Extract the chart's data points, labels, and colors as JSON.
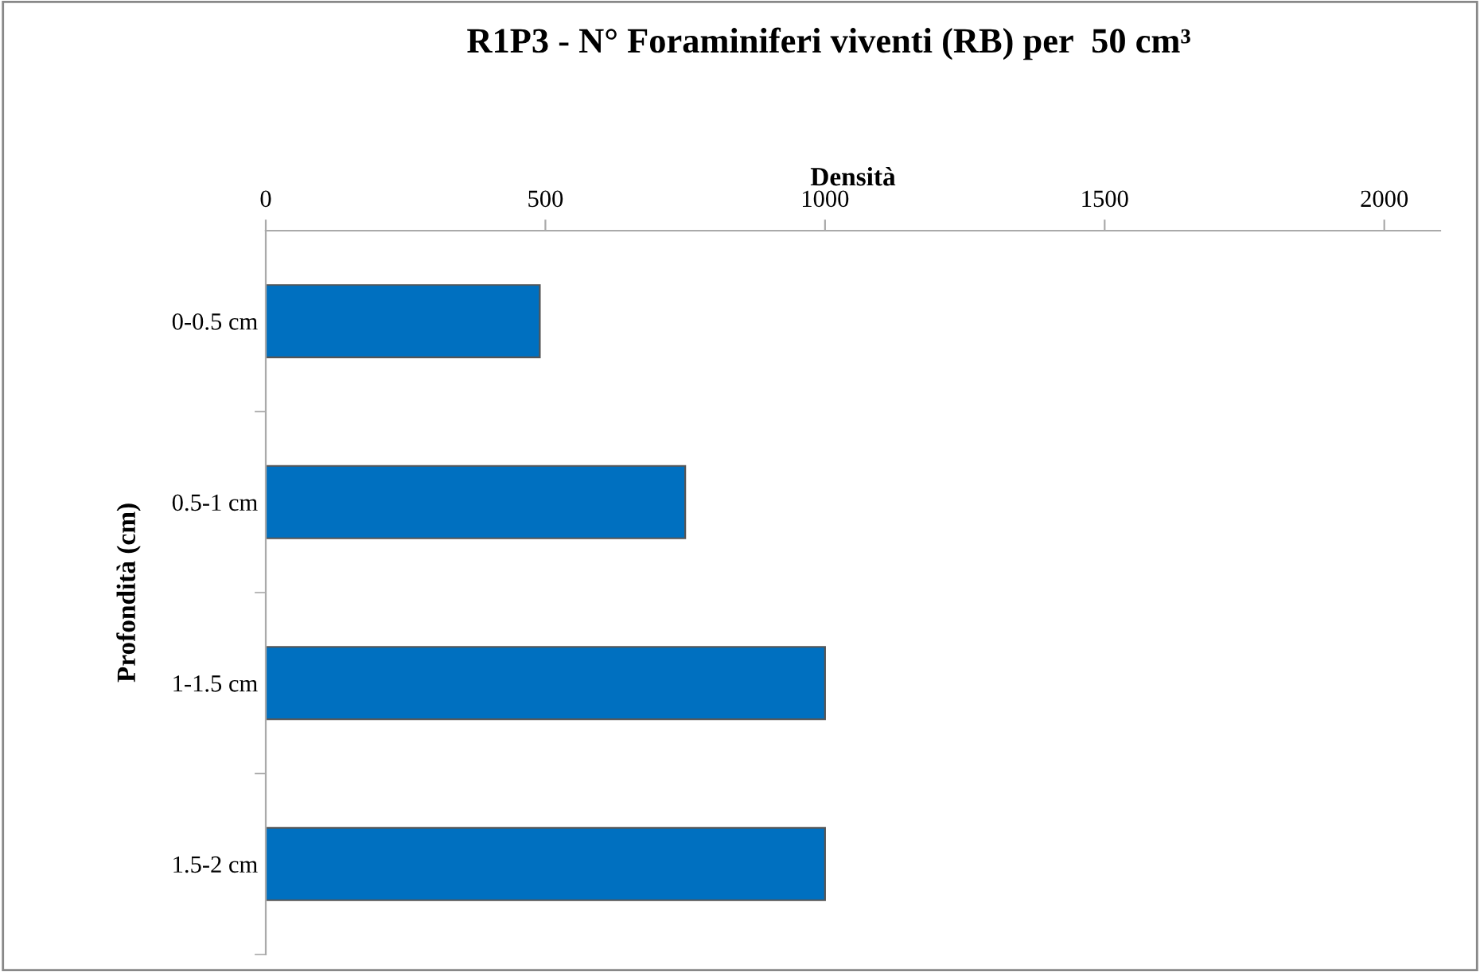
{
  "chart_data": {
    "type": "bar",
    "orientation": "horizontal",
    "title": "R1P3 - N° Foraminiferi viventi (RB) per  50 cm³",
    "xlabel": "Densità",
    "ylabel": "Profondità (cm)",
    "categories": [
      "0-0.5 cm",
      "0.5-1 cm",
      "1-1.5 cm",
      "1.5-2 cm"
    ],
    "values": [
      490,
      750,
      1000,
      1000
    ],
    "color": "#0070c0",
    "xlim": [
      0,
      2100
    ],
    "xticks": [
      0,
      500,
      1000,
      1500,
      2000
    ],
    "grid": false
  }
}
